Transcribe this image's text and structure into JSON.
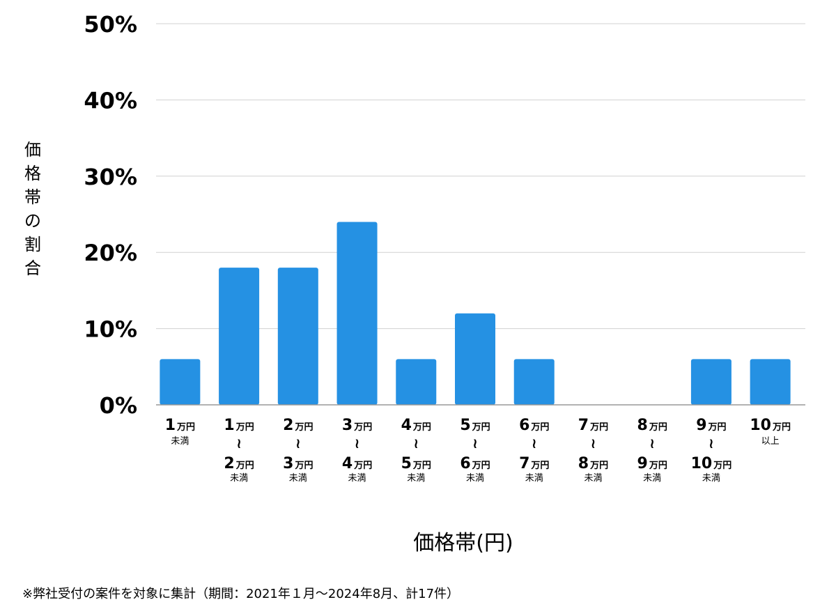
{
  "chart_data": {
    "type": "bar",
    "ylabel": "価格帯の割合",
    "xlabel": "価格帯(円)",
    "ylim": [
      0,
      50
    ],
    "yticks": [
      "0%",
      "10%",
      "20%",
      "30%",
      "40%",
      "50%"
    ],
    "grid": true,
    "bar_color": "#2591e3",
    "categories": [
      {
        "lines": [
          {
            "num": "1",
            "unit": "万円"
          }
        ],
        "note": "未満"
      },
      {
        "lines": [
          {
            "num": "1",
            "unit": "万円"
          },
          {
            "num": "2",
            "unit": "万円"
          }
        ],
        "note": "未満"
      },
      {
        "lines": [
          {
            "num": "2",
            "unit": "万円"
          },
          {
            "num": "3",
            "unit": "万円"
          }
        ],
        "note": "未満"
      },
      {
        "lines": [
          {
            "num": "3",
            "unit": "万円"
          },
          {
            "num": "4",
            "unit": "万円"
          }
        ],
        "note": "未満"
      },
      {
        "lines": [
          {
            "num": "4",
            "unit": "万円"
          },
          {
            "num": "5",
            "unit": "万円"
          }
        ],
        "note": "未満"
      },
      {
        "lines": [
          {
            "num": "5",
            "unit": "万円"
          },
          {
            "num": "6",
            "unit": "万円"
          }
        ],
        "note": "未満"
      },
      {
        "lines": [
          {
            "num": "6",
            "unit": "万円"
          },
          {
            "num": "7",
            "unit": "万円"
          }
        ],
        "note": "未満"
      },
      {
        "lines": [
          {
            "num": "7",
            "unit": "万円"
          },
          {
            "num": "8",
            "unit": "万円"
          }
        ],
        "note": "未満"
      },
      {
        "lines": [
          {
            "num": "8",
            "unit": "万円"
          },
          {
            "num": "9",
            "unit": "万円"
          }
        ],
        "note": "未満"
      },
      {
        "lines": [
          {
            "num": "9",
            "unit": "万円"
          },
          {
            "num": "10",
            "unit": "万円"
          }
        ],
        "note": "未満"
      },
      {
        "lines": [
          {
            "num": "10",
            "unit": "万円"
          }
        ],
        "note": "以上"
      }
    ],
    "range_symbol": "≀",
    "values": [
      6,
      18,
      18,
      24,
      6,
      12,
      6,
      0,
      0,
      6,
      6
    ]
  },
  "footnote": "※弊社受付の案件を対象に集計（期間：2021年１月〜2024年8月、計17件）"
}
